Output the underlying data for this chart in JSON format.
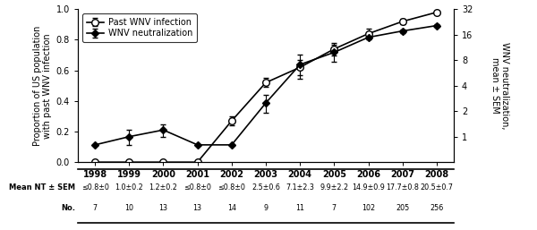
{
  "years": [
    1998,
    1999,
    2000,
    2001,
    2002,
    2003,
    2004,
    2005,
    2006,
    2007,
    2008
  ],
  "proportion": [
    0.0,
    0.0,
    0.0,
    0.0,
    0.27,
    0.52,
    0.62,
    0.74,
    0.84,
    0.92,
    0.98
  ],
  "nt_values": [
    0.8,
    1.0,
    1.2,
    0.8,
    0.8,
    2.5,
    7.1,
    9.9,
    14.9,
    17.7,
    20.5
  ],
  "nt_sem": [
    0.0,
    0.2,
    0.2,
    0.0,
    0.0,
    0.6,
    2.3,
    2.2,
    0.9,
    0.8,
    0.7
  ],
  "proportion_sem": [
    0.0,
    0.0,
    0.0,
    0.0,
    0.03,
    0.03,
    0.05,
    0.04,
    0.03,
    0.02,
    0.01
  ],
  "table_nt": [
    "≤0.8±0",
    "1.0±0.2",
    "1.2±0.2",
    "≤0.8±0",
    "≤0.8±0",
    "2.5±0.6",
    "7.1±2.3",
    "9.9±2.2",
    "14.9±0.9",
    "17.7±0.8",
    "20.5±0.7"
  ],
  "table_no": [
    "7",
    "10",
    "13",
    "13",
    "14",
    "9",
    "11",
    "7",
    "102",
    "205",
    "256"
  ],
  "right_yticks_vals": [
    1,
    2,
    4,
    8,
    16,
    32
  ],
  "right_yticklabels": [
    "1",
    "2",
    "4",
    "8",
    "16",
    "32"
  ],
  "log_min": -1.0,
  "log_max": 5.0,
  "left_ylabel": "Proportion of US population\nwith past WNV infection",
  "right_ylabel": "WNV neutralization,\nmean ± SEM",
  "legend_infection": "Past WNV infection",
  "legend_neutralization": "WNV neutralization",
  "table_row1_label": "Mean NT ± SEM",
  "table_row2_label": "No."
}
